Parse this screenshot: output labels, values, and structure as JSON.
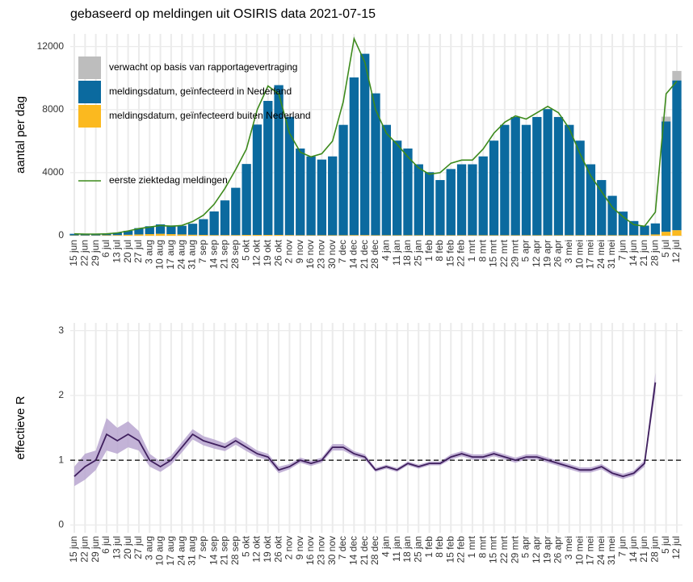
{
  "chart_data": [
    {
      "type": "bar",
      "title": "gebaseerd op meldingen uit OSIRIS data 2021-07-15",
      "y_label": "aantal per dag",
      "categories": [
        "15 jun",
        "22 jun",
        "29 jun",
        "6 jul",
        "13 jul",
        "20 jul",
        "27 jul",
        "3 aug",
        "10 aug",
        "17 aug",
        "24 aug",
        "31 aug",
        "7 sep",
        "14 sep",
        "21 sep",
        "28 sep",
        "5 okt",
        "12 okt",
        "19 okt",
        "26 okt",
        "2 nov",
        "9 nov",
        "16 nov",
        "23 nov",
        "30 nov",
        "7 dec",
        "14 dec",
        "21 dec",
        "28 dec",
        "4 jan",
        "11 jan",
        "18 jan",
        "25 jan",
        "1 feb",
        "8 feb",
        "15 feb",
        "22 feb",
        "1 mrt",
        "8 mrt",
        "15 mrt",
        "22 mrt",
        "29 mrt",
        "5 apr",
        "12 apr",
        "19 apr",
        "26 apr",
        "3 mei",
        "10 mei",
        "17 mei",
        "24 mei",
        "31 mei",
        "7 jun",
        "14 jun",
        "21 jun",
        "28 jun",
        "5 jul",
        "12 jul"
      ],
      "series": [
        {
          "name": "verwacht op basis van rapportagevertraging",
          "color": "#bdbdbd",
          "values": [
            0,
            0,
            0,
            0,
            0,
            0,
            0,
            0,
            0,
            0,
            0,
            0,
            0,
            0,
            0,
            0,
            0,
            0,
            0,
            0,
            0,
            0,
            0,
            0,
            0,
            0,
            0,
            0,
            0,
            0,
            0,
            0,
            0,
            0,
            0,
            0,
            0,
            0,
            0,
            0,
            0,
            0,
            0,
            0,
            0,
            0,
            0,
            0,
            0,
            0,
            0,
            0,
            0,
            0,
            0,
            300,
            600
          ]
        },
        {
          "name": "meldingsdatum, geïnfecteerd in Nederland",
          "color": "#0b6a9f",
          "values": [
            100,
            100,
            80,
            100,
            150,
            250,
            400,
            500,
            600,
            550,
            550,
            700,
            1000,
            1500,
            2200,
            3000,
            4500,
            7000,
            8500,
            9500,
            7500,
            5500,
            5000,
            4800,
            5000,
            7000,
            10000,
            11500,
            9000,
            7000,
            6000,
            5500,
            4500,
            4000,
            3500,
            4200,
            4500,
            4500,
            5000,
            6000,
            7000,
            7500,
            7000,
            7500,
            8000,
            7500,
            7000,
            6000,
            4500,
            3500,
            2500,
            1500,
            900,
            600,
            700,
            7000,
            9500
          ]
        },
        {
          "name": "meldingsdatum, geïnfecteerd buiten Nederland",
          "color": "#fbb91f",
          "values": [
            20,
            20,
            20,
            30,
            40,
            60,
            80,
            100,
            120,
            100,
            80,
            60,
            50,
            40,
            40,
            40,
            50,
            50,
            50,
            50,
            40,
            30,
            30,
            30,
            30,
            30,
            40,
            40,
            30,
            30,
            30,
            30,
            30,
            30,
            30,
            30,
            30,
            30,
            30,
            30,
            30,
            30,
            30,
            30,
            30,
            30,
            30,
            30,
            30,
            30,
            30,
            30,
            30,
            40,
            80,
            250,
            350
          ]
        },
        {
          "name": "eerste ziektedag meldingen",
          "color": "#3d8a1c",
          "type": "line",
          "values": [
            120,
            100,
            100,
            120,
            180,
            300,
            450,
            550,
            650,
            600,
            650,
            900,
            1300,
            2000,
            3000,
            4200,
            5500,
            8000,
            9500,
            9000,
            6500,
            5300,
            5000,
            5200,
            6000,
            8500,
            12500,
            11000,
            8000,
            6500,
            5800,
            5000,
            4300,
            3900,
            4000,
            4600,
            4800,
            4800,
            5500,
            6500,
            7200,
            7600,
            7400,
            7800,
            8200,
            7800,
            6800,
            5200,
            3800,
            2800,
            1800,
            1200,
            700,
            600,
            1500,
            9000,
            9800
          ]
        }
      ],
      "ylim": [
        0,
        12800
      ],
      "yticks": [
        0,
        4000,
        8000,
        12000
      ],
      "grid": true,
      "legend": "top-left"
    },
    {
      "type": "line",
      "y_label": "effectieve R",
      "categories": [
        "15 jun",
        "22 jun",
        "29 jun",
        "6 jul",
        "13 jul",
        "20 jul",
        "27 jul",
        "3 aug",
        "10 aug",
        "17 aug",
        "24 aug",
        "31 aug",
        "7 sep",
        "14 sep",
        "21 sep",
        "28 sep",
        "5 okt",
        "12 okt",
        "19 okt",
        "26 okt",
        "2 nov",
        "9 nov",
        "16 nov",
        "23 nov",
        "30 nov",
        "7 dec",
        "14 dec",
        "21 dec",
        "28 dec",
        "4 jan",
        "11 jan",
        "18 jan",
        "25 jan",
        "1 feb",
        "8 feb",
        "15 feb",
        "22 feb",
        "1 mrt",
        "8 mrt",
        "15 mrt",
        "22 mrt",
        "29 mrt",
        "5 apr",
        "12 apr",
        "19 apr",
        "26 apr",
        "3 mei",
        "10 mei",
        "17 mei",
        "24 mei",
        "31 mei",
        "7 jun",
        "14 jun",
        "21 jun",
        "28 jun",
        "5 jul",
        "12 jul"
      ],
      "series": [
        {
          "color": "#3f1f5e",
          "band_color": "#b9a6d0",
          "values": [
            0.75,
            0.9,
            1.0,
            1.4,
            1.3,
            1.4,
            1.3,
            1.0,
            0.9,
            1.0,
            1.2,
            1.4,
            1.3,
            1.25,
            1.2,
            1.3,
            1.2,
            1.1,
            1.05,
            0.85,
            0.9,
            1.0,
            0.95,
            1.0,
            1.2,
            1.2,
            1.1,
            1.05,
            0.85,
            0.9,
            0.85,
            0.95,
            0.9,
            0.95,
            0.95,
            1.05,
            1.1,
            1.05,
            1.05,
            1.1,
            1.05,
            1.0,
            1.05,
            1.05,
            1.0,
            0.95,
            0.9,
            0.85,
            0.85,
            0.9,
            0.8,
            0.75,
            0.8,
            0.95,
            2.2,
            null,
            null
          ],
          "lower": [
            0.6,
            0.7,
            0.85,
            1.15,
            1.1,
            1.2,
            1.15,
            0.9,
            0.82,
            0.93,
            1.12,
            1.32,
            1.23,
            1.18,
            1.14,
            1.24,
            1.14,
            1.05,
            1.0,
            0.8,
            0.86,
            0.96,
            0.91,
            0.96,
            1.15,
            1.15,
            1.06,
            1.01,
            0.82,
            0.87,
            0.82,
            0.92,
            0.87,
            0.92,
            0.92,
            1.01,
            1.06,
            1.01,
            1.01,
            1.06,
            1.01,
            0.96,
            1.01,
            1.01,
            0.96,
            0.91,
            0.86,
            0.81,
            0.81,
            0.86,
            0.76,
            0.71,
            0.76,
            0.9,
            2.05,
            null,
            null
          ],
          "upper": [
            0.9,
            1.1,
            1.15,
            1.65,
            1.5,
            1.6,
            1.45,
            1.1,
            0.98,
            1.07,
            1.28,
            1.48,
            1.37,
            1.32,
            1.26,
            1.36,
            1.26,
            1.15,
            1.1,
            0.9,
            0.94,
            1.04,
            0.99,
            1.04,
            1.25,
            1.25,
            1.14,
            1.09,
            0.88,
            0.93,
            0.88,
            0.98,
            0.93,
            0.98,
            0.98,
            1.09,
            1.14,
            1.09,
            1.09,
            1.14,
            1.09,
            1.04,
            1.09,
            1.09,
            1.04,
            0.99,
            0.94,
            0.89,
            0.89,
            0.94,
            0.84,
            0.79,
            0.84,
            1.0,
            2.35,
            null,
            null
          ]
        }
      ],
      "reference_line": 1,
      "ylim": [
        -0.12,
        3.12
      ],
      "yticks": [
        0,
        1,
        2,
        3
      ],
      "grid": true
    }
  ]
}
